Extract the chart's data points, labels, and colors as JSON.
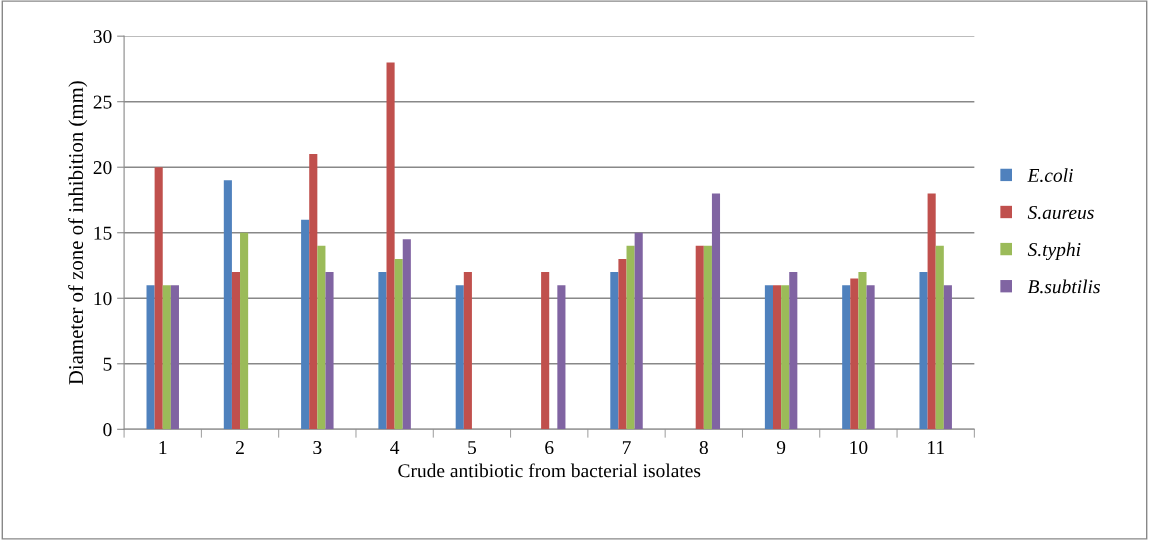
{
  "chart_data": {
    "type": "bar",
    "xlabel": "Crude antibiotic from bacterial isolates",
    "ylabel": "Diameter of zone of inhibition (mm)",
    "categories": [
      "1",
      "2",
      "3",
      "4",
      "5",
      "6",
      "7",
      "8",
      "9",
      "10",
      "11"
    ],
    "series": [
      {
        "name": "E.coli",
        "color": "#4f81bd",
        "values": [
          11,
          19,
          16,
          12,
          11,
          null,
          12,
          null,
          11,
          11,
          12
        ]
      },
      {
        "name": "S.aureus",
        "color": "#c0504d",
        "values": [
          20,
          12,
          21,
          28,
          12,
          12,
          13,
          14,
          11,
          11.5,
          18
        ]
      },
      {
        "name": "S.typhi",
        "color": "#9bbb59",
        "values": [
          11,
          15,
          14,
          13,
          null,
          null,
          14,
          14,
          11,
          12,
          14
        ]
      },
      {
        "name": "B.subtilis",
        "color": "#8064a2",
        "values": [
          11,
          null,
          12,
          14.5,
          null,
          11,
          15,
          18,
          12,
          11,
          11
        ]
      }
    ],
    "ylim": [
      0,
      30
    ],
    "yticks": [
      0,
      5,
      10,
      15,
      20,
      25,
      30
    ],
    "grid": "y",
    "legend": "right"
  }
}
